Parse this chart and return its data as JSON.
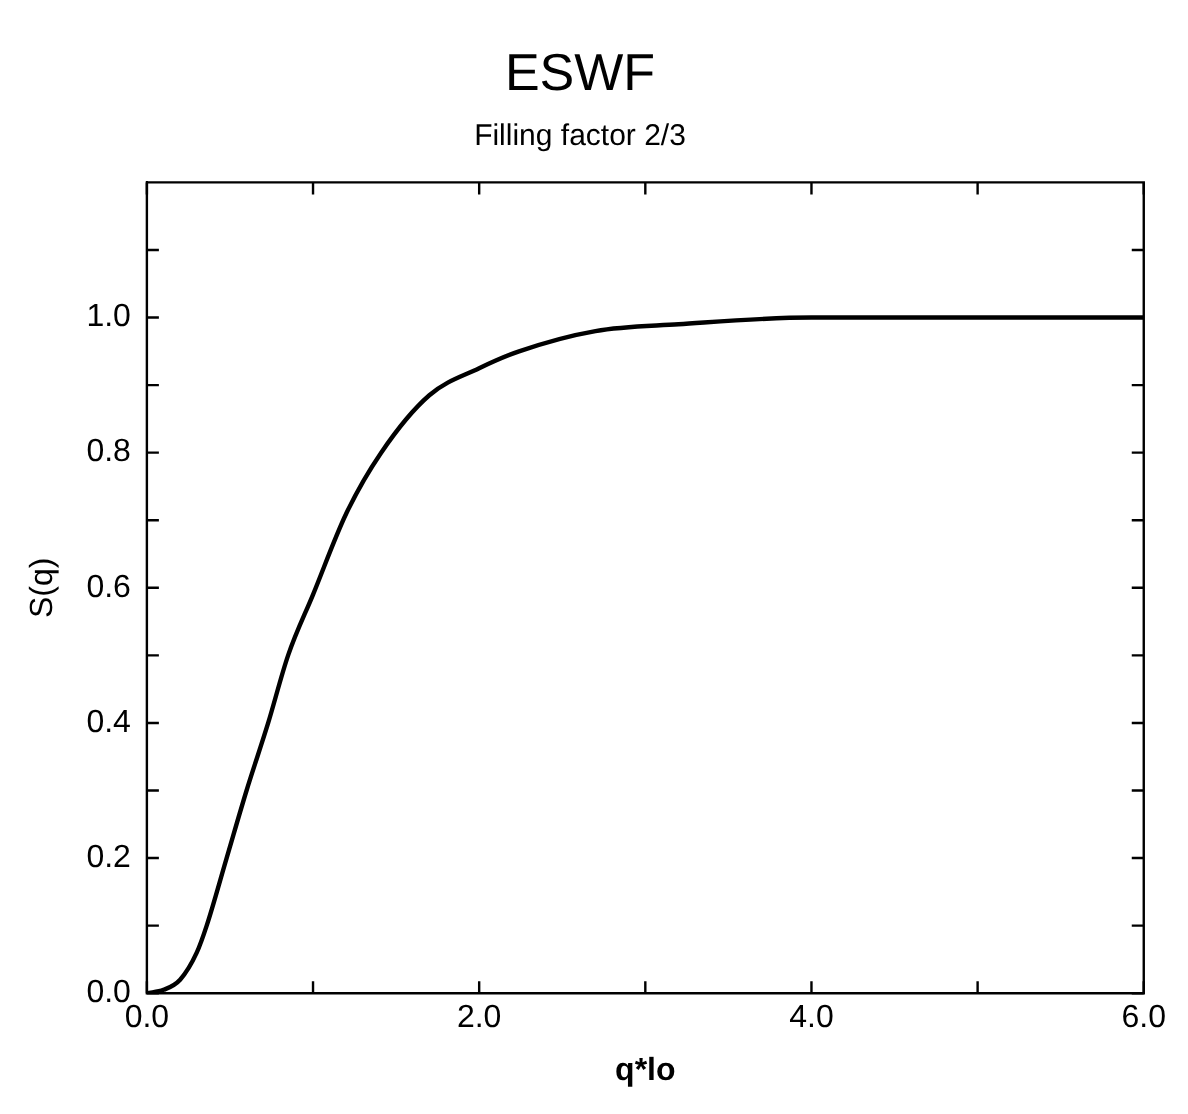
{
  "chart_data": {
    "type": "line",
    "title": "ESWF",
    "subtitle": "Filling factor 2/3",
    "xlabel": "q*lo",
    "ylabel": "S(q)",
    "series": [
      {
        "color": "#000000",
        "x": [
          0,
          0.1,
          0.2,
          0.3,
          0.36,
          0.48,
          0.6,
          0.73,
          0.85,
          1.0,
          1.2,
          1.41,
          1.7,
          2.0,
          2.24,
          2.7,
          3.2,
          4.0,
          5.0,
          6.0
        ],
        "values": [
          0,
          0.005,
          0.02,
          0.06,
          0.1,
          0.2,
          0.3,
          0.4,
          0.5,
          0.59,
          0.71,
          0.8,
          0.885,
          0.925,
          0.95,
          0.98,
          0.99,
          1.0,
          1.0,
          1.0
        ]
      }
    ],
    "xlim": [
      0,
      6
    ],
    "xticks": [
      {
        "value": 0,
        "label": "0.0"
      },
      {
        "value": 1,
        "label": null
      },
      {
        "value": 2,
        "label": "2.0"
      },
      {
        "value": 3,
        "label": null
      },
      {
        "value": 4,
        "label": "4.0"
      },
      {
        "value": 5,
        "label": null
      },
      {
        "value": 6,
        "label": "6.0"
      }
    ],
    "ylim": [
      0,
      1.2
    ],
    "yticks": [
      {
        "value": 0,
        "label": "0.0"
      },
      {
        "value": 0.1,
        "label": null
      },
      {
        "value": 0.2,
        "label": "0.2"
      },
      {
        "value": 0.3,
        "label": null
      },
      {
        "value": 0.4,
        "label": "0.4"
      },
      {
        "value": 0.5,
        "label": null
      },
      {
        "value": 0.6,
        "label": "0.6"
      },
      {
        "value": 0.7,
        "label": null
      },
      {
        "value": 0.8,
        "label": "0.8"
      },
      {
        "value": 0.9,
        "label": null
      },
      {
        "value": 1.0,
        "label": "1.0"
      },
      {
        "value": 1.1,
        "label": null
      }
    ],
    "grid": false,
    "legend": false,
    "marker": "none",
    "line_style": "solid"
  }
}
